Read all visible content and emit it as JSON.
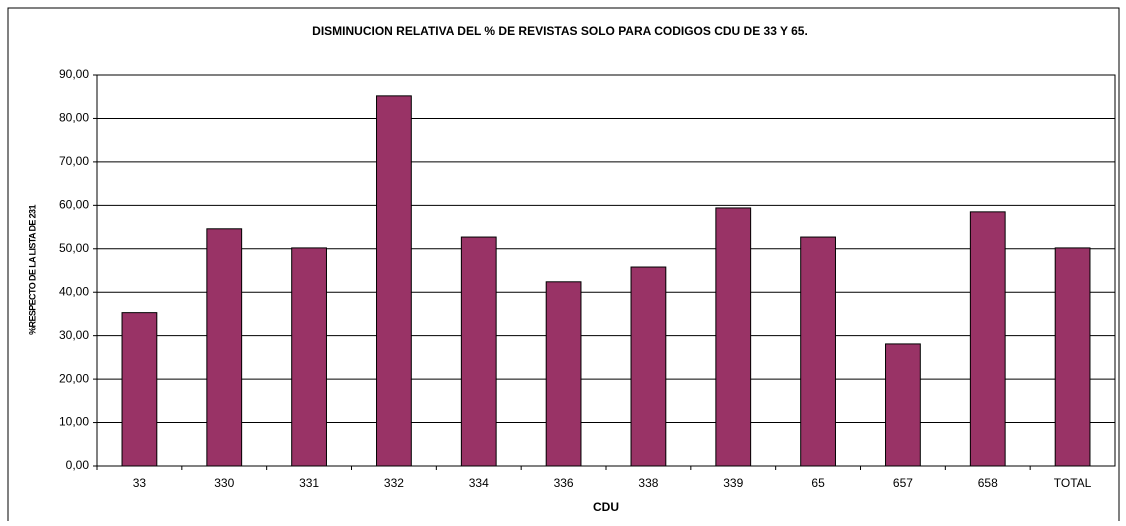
{
  "chart_data": {
    "type": "bar",
    "title": "DISMINUCION RELATIVA DEL % DE REVISTAS SOLO PARA CODIGOS CDU DE 33 Y 65.",
    "x_label": "CDU",
    "y_label": "%RESPECTO DE LA LISTA DE 231",
    "categories": [
      "33",
      "330",
      "331",
      "332",
      "334",
      "336",
      "338",
      "339",
      "65",
      "657",
      "658",
      "TOTAL"
    ],
    "values": [
      35.3,
      54.6,
      50.2,
      85.2,
      52.7,
      42.4,
      45.8,
      59.4,
      52.7,
      28.1,
      58.5,
      50.2
    ],
    "color": "#993366",
    "ylim": [
      0,
      90
    ],
    "yticks": [
      {
        "value": 0,
        "label": "0,00"
      },
      {
        "value": 10,
        "label": "10,00"
      },
      {
        "value": 20,
        "label": "20,00"
      },
      {
        "value": 30,
        "label": "30,00"
      },
      {
        "value": 40,
        "label": "40,00"
      },
      {
        "value": 50,
        "label": "50,00"
      },
      {
        "value": 60,
        "label": "60,00"
      },
      {
        "value": 70,
        "label": "70,00"
      },
      {
        "value": 80,
        "label": "80,00"
      },
      {
        "value": 90,
        "label": "90,00"
      }
    ],
    "grid": true
  }
}
